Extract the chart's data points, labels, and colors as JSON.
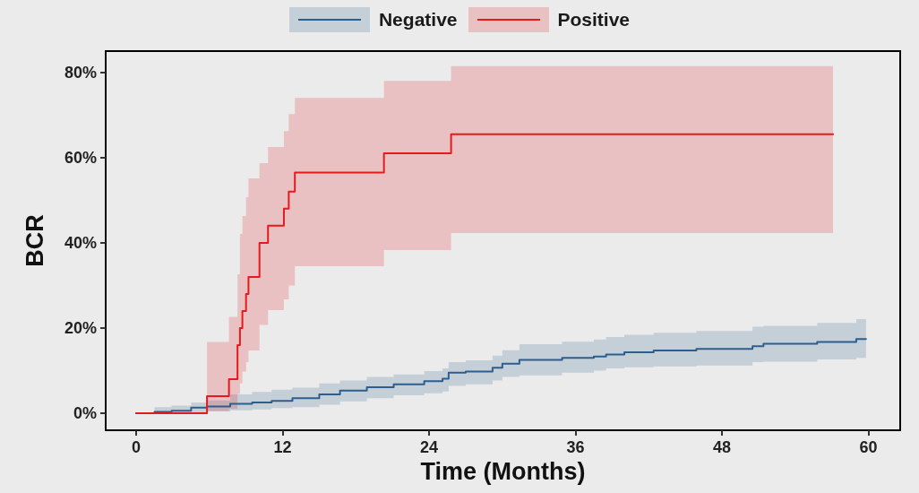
{
  "chart_data": {
    "type": "step",
    "xlabel": "Time (Months)",
    "ylabel": "BCR",
    "legend": "top",
    "xlim": [
      -2.5,
      62.6
    ],
    "xticks": [
      0,
      12,
      24,
      36,
      48,
      60
    ],
    "ylim": [
      -4,
      85
    ],
    "yticks": [
      {
        "value": 0,
        "label": "0%"
      },
      {
        "value": 20,
        "label": "20%"
      },
      {
        "value": 40,
        "label": "40%"
      },
      {
        "value": 60,
        "label": "60%"
      },
      {
        "value": 80,
        "label": "80%"
      }
    ],
    "series": [
      {
        "name": "Negative",
        "color": "#2c5f8e",
        "x": [
          0,
          1.5,
          2.9,
          4.5,
          5.8,
          7.7,
          9.5,
          11.1,
          12.8,
          15.0,
          16.7,
          18.9,
          21.1,
          23.6,
          25.1,
          25.6,
          27.0,
          29.2,
          30.0,
          31.4,
          34.9,
          37.5,
          38.5,
          40.0,
          42.4,
          45.9,
          50.5,
          51.4,
          55.8,
          59.0,
          59.8
        ],
        "values": [
          0,
          0.3,
          0.6,
          1.3,
          1.6,
          2.2,
          2.5,
          2.9,
          3.5,
          4.4,
          5.3,
          6.1,
          6.8,
          7.5,
          8.1,
          9.5,
          9.8,
          10.7,
          11.6,
          12.5,
          13.0,
          13.3,
          13.8,
          14.3,
          14.7,
          15.1,
          15.7,
          16.3,
          16.7,
          17.4,
          17.4
        ],
        "lower": [
          0,
          0,
          0,
          0.2,
          0.4,
          0.7,
          0.9,
          1.2,
          1.4,
          2.0,
          2.8,
          3.5,
          4.2,
          4.7,
          5.1,
          6.4,
          6.8,
          7.7,
          8.5,
          8.9,
          9.5,
          10.0,
          10.5,
          10.8,
          11.0,
          11.2,
          12.0,
          12.1,
          12.6,
          13.0,
          13.0
        ],
        "upper": [
          0,
          1.4,
          1.8,
          2.5,
          3.0,
          4.4,
          5.0,
          5.5,
          6.0,
          7.0,
          7.7,
          8.5,
          9.1,
          9.9,
          10.5,
          12.0,
          12.4,
          13.5,
          14.8,
          16.2,
          16.8,
          17.3,
          17.9,
          18.4,
          18.9,
          19.3,
          20.3,
          20.5,
          21.2,
          22.1,
          22.1
        ]
      },
      {
        "name": "Positive",
        "color": "#e41a1c",
        "x": [
          0,
          5.8,
          7.6,
          8.3,
          8.5,
          8.7,
          9.0,
          9.2,
          10.1,
          10.8,
          12.1,
          12.5,
          13.0,
          20.3,
          25.8,
          57.1
        ],
        "values": [
          0,
          4,
          8,
          16,
          20,
          24,
          28,
          32,
          40,
          44,
          48,
          52,
          56.5,
          61,
          65.5,
          65.5
        ],
        "lower": [
          0,
          0.5,
          1,
          4.5,
          7,
          9.8,
          12,
          14.7,
          20.7,
          24.2,
          26.7,
          30,
          34.5,
          38.3,
          42.3,
          42.3
        ],
        "upper": [
          0,
          16.7,
          22.6,
          32.6,
          42.1,
          46.3,
          50.7,
          55.1,
          58.7,
          62.5,
          66.2,
          70.2,
          74,
          78,
          81.5,
          81.5
        ]
      }
    ]
  }
}
